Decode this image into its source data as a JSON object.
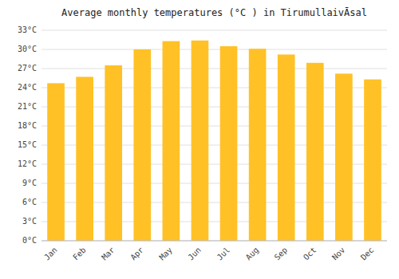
{
  "chart_data": {
    "type": "bar",
    "title": "Average monthly temperatures (°C ) in TirumullaivĀsal",
    "categories": [
      "Jan",
      "Feb",
      "Mar",
      "Apr",
      "May",
      "Jun",
      "Jul",
      "Aug",
      "Sep",
      "Oct",
      "Nov",
      "Dec"
    ],
    "values": [
      24.7,
      25.7,
      27.5,
      30.0,
      31.3,
      31.4,
      30.5,
      30.1,
      29.2,
      27.9,
      26.2,
      25.3
    ],
    "color": "#FFC125",
    "ylim": [
      0,
      33
    ],
    "yticks": [
      {
        "value": 0,
        "label": "0°C"
      },
      {
        "value": 3,
        "label": "3°C"
      },
      {
        "value": 6,
        "label": "6°C"
      },
      {
        "value": 9,
        "label": "9°C"
      },
      {
        "value": 12,
        "label": "12°C"
      },
      {
        "value": 15,
        "label": "15°C"
      },
      {
        "value": 18,
        "label": "18°C"
      },
      {
        "value": 21,
        "label": "21°C"
      },
      {
        "value": 24,
        "label": "24°C"
      },
      {
        "value": 27,
        "label": "27°C"
      },
      {
        "value": 30,
        "label": "30°C"
      },
      {
        "value": 33,
        "label": "33°C"
      }
    ],
    "grid": true
  }
}
